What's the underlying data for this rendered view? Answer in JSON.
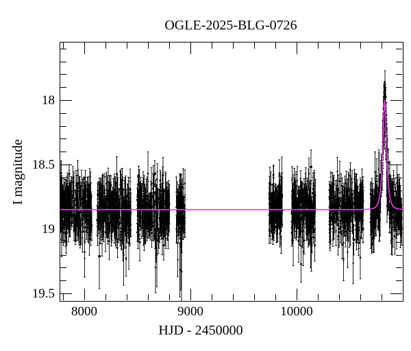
{
  "figure": {
    "background": "#ffffff",
    "point_color": "#000000",
    "frame_color": "#000000"
  },
  "chart_data": {
    "type": "scatter",
    "title": "OGLE-2025-BLG-0726",
    "xlabel": "HJD - 2450000",
    "ylabel": "I magnitude",
    "grid": false,
    "legend": null,
    "x_axis": {
      "lim": [
        7768,
        11000
      ],
      "major_ticks": [
        8000,
        9000,
        10000
      ],
      "major_labels": [
        "8000",
        "9000",
        "10000"
      ],
      "minor_step": 200
    },
    "y_axis": {
      "inverted": true,
      "lim_top": 17.548,
      "lim_bottom": 19.559,
      "major_ticks": [
        18,
        18.5,
        19,
        19.5
      ],
      "major_labels": [
        "18",
        "18.5",
        "19",
        "19.5"
      ],
      "minor_step": 0.1
    },
    "model": {
      "kind": "paczynski-microlensing",
      "color": "#ee3aee",
      "t0": 10830,
      "tE": 30,
      "u0": 0.5,
      "baseline_mag": 18.85,
      "peak_mag": 18.0
    },
    "photometry": {
      "color": "#000000",
      "baseline_mag": 18.85,
      "seasons": [
        {
          "start": 7775,
          "end": 8072,
          "n": 240
        },
        {
          "start": 8122,
          "end": 8442,
          "n": 260
        },
        {
          "start": 8498,
          "end": 8802,
          "n": 250
        },
        {
          "start": 8865,
          "end": 8950,
          "n": 95
        },
        {
          "start": 9742,
          "end": 9868,
          "n": 120
        },
        {
          "start": 9952,
          "end": 10178,
          "n": 190
        },
        {
          "start": 10308,
          "end": 10628,
          "n": 235
        },
        {
          "start": 10695,
          "end": 10993,
          "n": 260,
          "extra_peak": 90
        }
      ],
      "noise": {
        "sigma": 0.105,
        "err_min": 0.05,
        "err_max": 0.125,
        "outlier_prob": 0.025,
        "outlier_shift_min": 0.15,
        "outlier_shift_max": 0.5,
        "rng_seed": 20250726
      }
    }
  }
}
